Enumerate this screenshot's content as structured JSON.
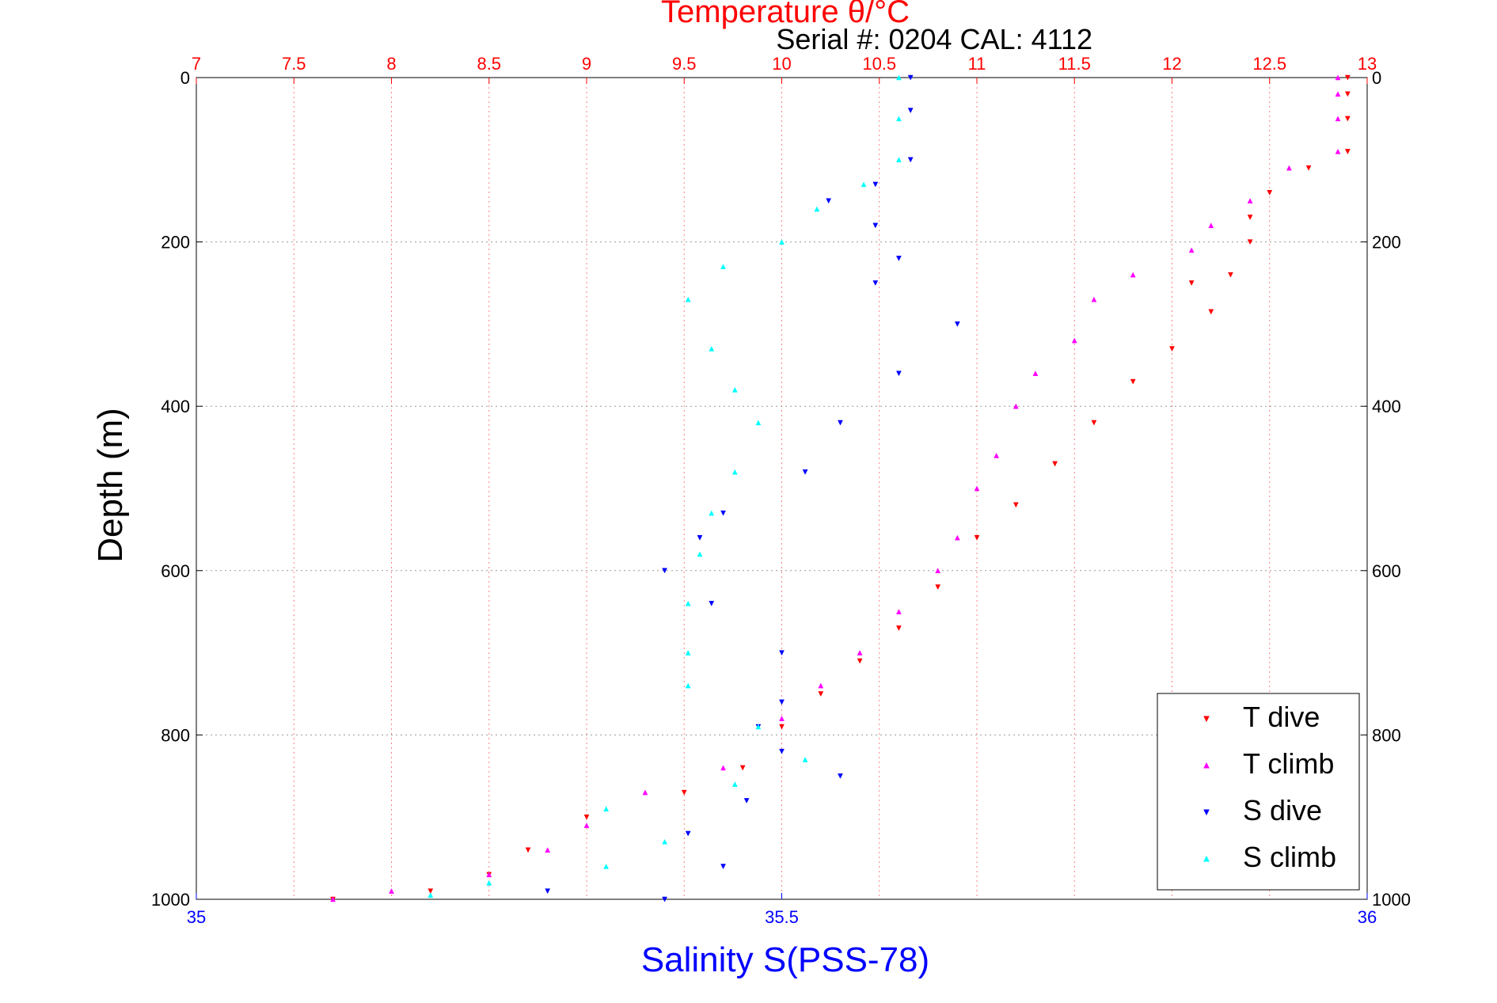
{
  "chart_data": {
    "type": "scatter",
    "title": "Temperature θ/°C",
    "subtitle": "Serial #: 0204  CAL: 4112",
    "ylabel": "Depth (m)",
    "xlabel_bottom": "Salinity S(PSS-78)",
    "top_axis": {
      "label": "Temperature θ/°C",
      "range": [
        7,
        13
      ],
      "ticks": [
        "7",
        "7.5",
        "8",
        "8.5",
        "9",
        "9.5",
        "10",
        "10.5",
        "11",
        "11.5",
        "12",
        "12.5",
        "13"
      ],
      "color": "#ff0000"
    },
    "bottom_axis": {
      "label": "Salinity S(PSS-78)",
      "range": [
        35,
        36
      ],
      "ticks": [
        "35",
        "35.5",
        "36"
      ],
      "color": "#0000ff"
    },
    "y_axis": {
      "label": "Depth (m)",
      "range": [
        0,
        1000
      ],
      "reversed": true,
      "ticks": [
        "0",
        "200",
        "400",
        "600",
        "800",
        "1000"
      ]
    },
    "grid": true,
    "legend_position": "bottom-right",
    "series": [
      {
        "name": "T dive",
        "color": "#ff0000",
        "marker": "triangle-down",
        "axis": "temperature",
        "points": [
          [
            12.9,
            0
          ],
          [
            12.9,
            20
          ],
          [
            12.9,
            50
          ],
          [
            12.9,
            90
          ],
          [
            12.7,
            110
          ],
          [
            12.5,
            140
          ],
          [
            12.4,
            170
          ],
          [
            12.4,
            200
          ],
          [
            12.3,
            240
          ],
          [
            12.1,
            250
          ],
          [
            12.2,
            285
          ],
          [
            12.0,
            330
          ],
          [
            11.8,
            370
          ],
          [
            11.6,
            420
          ],
          [
            11.4,
            470
          ],
          [
            11.2,
            520
          ],
          [
            11.0,
            560
          ],
          [
            10.8,
            620
          ],
          [
            10.6,
            670
          ],
          [
            10.4,
            710
          ],
          [
            10.2,
            750
          ],
          [
            10.0,
            790
          ],
          [
            9.8,
            840
          ],
          [
            9.5,
            870
          ],
          [
            9.0,
            900
          ],
          [
            8.7,
            940
          ],
          [
            8.5,
            970
          ],
          [
            8.2,
            990
          ],
          [
            7.7,
            1000
          ]
        ]
      },
      {
        "name": "T climb",
        "color": "#ff00ff",
        "marker": "triangle-up",
        "axis": "temperature",
        "points": [
          [
            12.85,
            0
          ],
          [
            12.85,
            20
          ],
          [
            12.85,
            50
          ],
          [
            12.85,
            90
          ],
          [
            12.6,
            110
          ],
          [
            12.4,
            150
          ],
          [
            12.2,
            180
          ],
          [
            12.1,
            210
          ],
          [
            11.8,
            240
          ],
          [
            11.6,
            270
          ],
          [
            11.5,
            320
          ],
          [
            11.3,
            360
          ],
          [
            11.2,
            400
          ],
          [
            11.1,
            460
          ],
          [
            11.0,
            500
          ],
          [
            10.9,
            560
          ],
          [
            10.8,
            600
          ],
          [
            10.6,
            650
          ],
          [
            10.4,
            700
          ],
          [
            10.2,
            740
          ],
          [
            10.0,
            780
          ],
          [
            9.7,
            840
          ],
          [
            9.3,
            870
          ],
          [
            9.0,
            910
          ],
          [
            8.8,
            940
          ],
          [
            8.5,
            970
          ],
          [
            8.0,
            990
          ],
          [
            7.7,
            1000
          ]
        ]
      },
      {
        "name": "S dive",
        "color": "#0000ff",
        "marker": "triangle-down",
        "axis": "salinity",
        "points": [
          [
            35.61,
            0
          ],
          [
            35.61,
            40
          ],
          [
            35.61,
            100
          ],
          [
            35.58,
            130
          ],
          [
            35.54,
            150
          ],
          [
            35.58,
            180
          ],
          [
            35.6,
            220
          ],
          [
            35.58,
            250
          ],
          [
            35.65,
            300
          ],
          [
            35.6,
            360
          ],
          [
            35.55,
            420
          ],
          [
            35.52,
            480
          ],
          [
            35.45,
            530
          ],
          [
            35.43,
            560
          ],
          [
            35.4,
            600
          ],
          [
            35.44,
            640
          ],
          [
            35.5,
            700
          ],
          [
            35.5,
            760
          ],
          [
            35.48,
            790
          ],
          [
            35.5,
            820
          ],
          [
            35.55,
            850
          ],
          [
            35.47,
            880
          ],
          [
            35.42,
            920
          ],
          [
            35.45,
            960
          ],
          [
            35.3,
            990
          ],
          [
            35.4,
            1000
          ]
        ]
      },
      {
        "name": "S climb",
        "color": "#00ffff",
        "marker": "triangle-up",
        "axis": "salinity",
        "points": [
          [
            35.6,
            0
          ],
          [
            35.6,
            50
          ],
          [
            35.6,
            100
          ],
          [
            35.57,
            130
          ],
          [
            35.53,
            160
          ],
          [
            35.5,
            200
          ],
          [
            35.45,
            230
          ],
          [
            35.42,
            270
          ],
          [
            35.44,
            330
          ],
          [
            35.46,
            380
          ],
          [
            35.48,
            420
          ],
          [
            35.46,
            480
          ],
          [
            35.44,
            530
          ],
          [
            35.43,
            580
          ],
          [
            35.42,
            640
          ],
          [
            35.42,
            700
          ],
          [
            35.42,
            740
          ],
          [
            35.48,
            790
          ],
          [
            35.52,
            830
          ],
          [
            35.46,
            860
          ],
          [
            35.35,
            890
          ],
          [
            35.4,
            930
          ],
          [
            35.35,
            960
          ],
          [
            35.25,
            980
          ],
          [
            35.2,
            995
          ]
        ]
      }
    ]
  }
}
